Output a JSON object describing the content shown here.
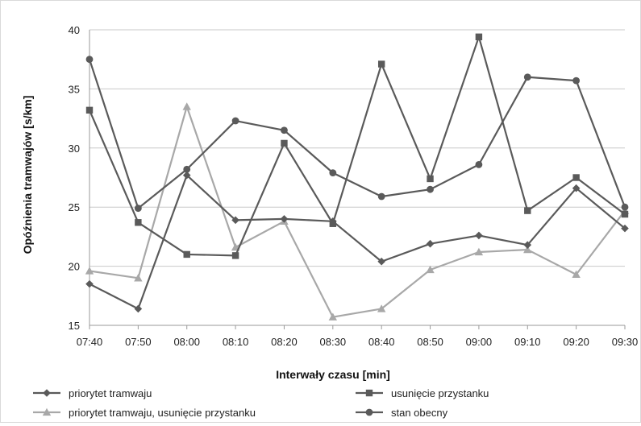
{
  "chart_data": {
    "type": "line",
    "title": "",
    "xlabel": "Interwały czasu [min]",
    "ylabel": "Opóźnienia tramwajów [s/km]",
    "ylim": [
      15,
      40
    ],
    "yticks": [
      "15",
      "20",
      "25",
      "30",
      "35",
      "40"
    ],
    "grid": "horizontal",
    "legend": "bottom",
    "categories": [
      "07:40",
      "07:50",
      "08:00",
      "08:10",
      "08:20",
      "08:30",
      "08:40",
      "08:50",
      "09:00",
      "09:10",
      "09:20",
      "09:30"
    ],
    "series": [
      {
        "name": "priorytet tramwaju",
        "marker": "diamond",
        "color": "#5a5a5a",
        "values": [
          18.5,
          16.4,
          27.7,
          23.9,
          24.0,
          23.8,
          20.4,
          21.9,
          22.6,
          21.8,
          26.6,
          23.2
        ]
      },
      {
        "name": "usunięcie przystanku",
        "marker": "square",
        "color": "#5a5a5a",
        "values": [
          33.2,
          23.7,
          21.0,
          20.9,
          30.4,
          23.6,
          37.1,
          27.4,
          39.4,
          24.7,
          27.5,
          24.4
        ]
      },
      {
        "name": "priorytet tramwaju, usunięcie przystanku",
        "marker": "triangle",
        "color": "#a8a8a8",
        "values": [
          19.6,
          19.0,
          33.5,
          21.6,
          23.8,
          15.7,
          16.4,
          19.7,
          21.2,
          21.4,
          19.3,
          24.7
        ]
      },
      {
        "name": "stan obecny",
        "marker": "circle",
        "color": "#5a5a5a",
        "values": [
          37.5,
          24.9,
          28.2,
          32.3,
          31.5,
          27.9,
          25.9,
          26.5,
          28.6,
          36.0,
          35.7,
          25.0
        ]
      }
    ]
  }
}
